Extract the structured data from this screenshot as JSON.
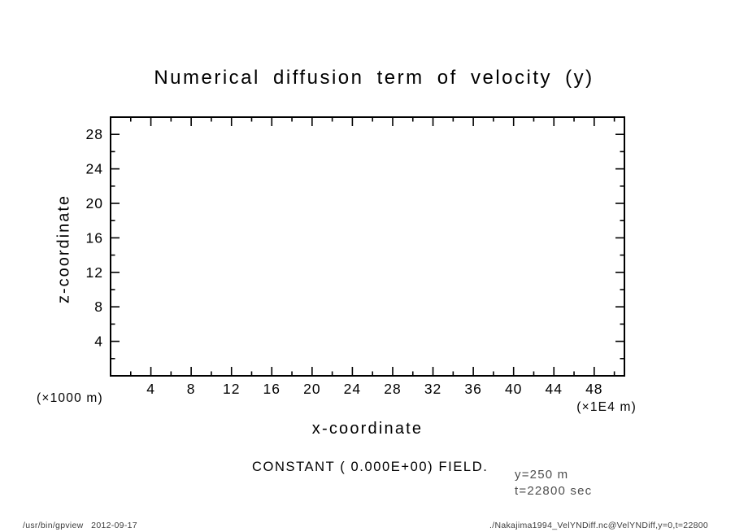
{
  "colors": {
    "background": "#ffffff",
    "foreground": "#000000",
    "info_text": "#4d4d4d",
    "footer_text": "#3d3d3d"
  },
  "chart_data": {
    "type": "heatmap",
    "title": "Numerical diffusion term of velocity (y)",
    "xlabel": "x-coordinate",
    "ylabel": "z-coordinate",
    "x_unit": "(×1E4 m)",
    "y_unit": "(×1000 m)",
    "xlim": [
      0,
      51
    ],
    "ylim": [
      0,
      30
    ],
    "x_major_ticks": [
      4,
      8,
      12,
      16,
      20,
      24,
      28,
      32,
      36,
      40,
      44,
      48
    ],
    "x_minor_ticks": [
      2,
      6,
      10,
      14,
      18,
      22,
      26,
      30,
      34,
      38,
      42,
      46,
      50
    ],
    "y_major_ticks": [
      4,
      8,
      12,
      16,
      20,
      24,
      28
    ],
    "y_minor_ticks": [
      2,
      6,
      10,
      14,
      18,
      22,
      26
    ],
    "grid": false,
    "legend": false,
    "field": "constant",
    "constant_value": 0.0,
    "constant_value_label": "0.000E+00",
    "annotation": "CONSTANT ( 0.000E+00) FIELD.",
    "slice_info": [
      "y=250 m",
      "t=22800 sec"
    ]
  },
  "footer": {
    "left": "/usr/bin/gpview   2012-09-17",
    "right": "./Nakajima1994_VelYNDiff.nc@VelYNDiff,y=0,t=22800"
  }
}
